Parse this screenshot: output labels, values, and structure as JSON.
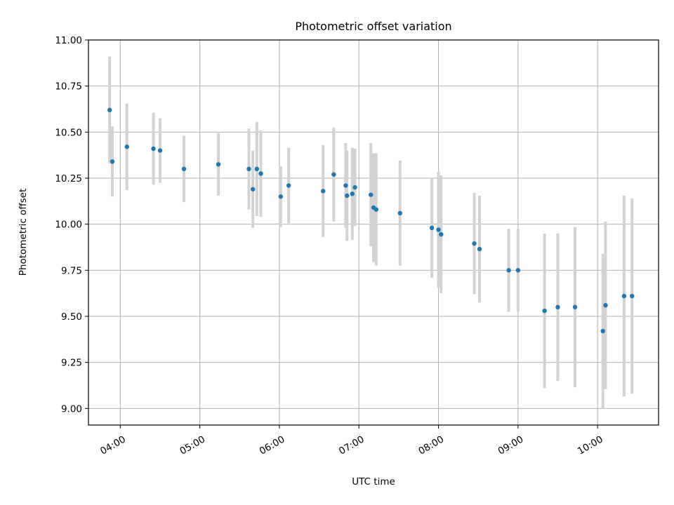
{
  "chart_data": {
    "type": "scatter",
    "title": "Photometric offset variation",
    "xlabel": "UTC time",
    "ylabel": "Photometric offset",
    "xlim": [
      "03:36",
      "10:46"
    ],
    "ylim": [
      8.91,
      11.0
    ],
    "x_ticks": [
      "04:00",
      "05:00",
      "06:00",
      "07:00",
      "08:00",
      "09:00",
      "10:00"
    ],
    "y_ticks": [
      "9.00",
      "9.25",
      "9.50",
      "9.75",
      "10.00",
      "10.25",
      "10.50",
      "10.75",
      "11.00"
    ],
    "grid": true,
    "point_color": "#1f77b4",
    "errorbar_color": "#d3d3d3",
    "points": [
      {
        "x": "03:52",
        "y": 10.62,
        "yerr": 0.29
      },
      {
        "x": "03:54",
        "y": 10.34,
        "yerr": 0.19
      },
      {
        "x": "04:05",
        "y": 10.42,
        "yerr": 0.235
      },
      {
        "x": "04:25",
        "y": 10.41,
        "yerr": 0.195
      },
      {
        "x": "04:30",
        "y": 10.4,
        "yerr": 0.175
      },
      {
        "x": "04:48",
        "y": 10.3,
        "yerr": 0.18
      },
      {
        "x": "05:14",
        "y": 10.325,
        "yerr": 0.17
      },
      {
        "x": "05:37",
        "y": 10.3,
        "yerr": 0.22
      },
      {
        "x": "05:40",
        "y": 10.19,
        "yerr": 0.21
      },
      {
        "x": "05:43",
        "y": 10.3,
        "yerr": 0.255
      },
      {
        "x": "05:46",
        "y": 10.275,
        "yerr": 0.235
      },
      {
        "x": "06:01",
        "y": 10.15,
        "yerr": 0.165
      },
      {
        "x": "06:07",
        "y": 10.21,
        "yerr": 0.205
      },
      {
        "x": "06:33",
        "y": 10.18,
        "yerr": 0.25
      },
      {
        "x": "06:41",
        "y": 10.27,
        "yerr": 0.255
      },
      {
        "x": "06:50",
        "y": 10.21,
        "yerr": 0.23
      },
      {
        "x": "06:51",
        "y": 10.155,
        "yerr": 0.245
      },
      {
        "x": "06:55",
        "y": 10.165,
        "yerr": 0.25
      },
      {
        "x": "06:57",
        "y": 10.2,
        "yerr": 0.21
      },
      {
        "x": "07:09",
        "y": 10.16,
        "yerr": 0.28
      },
      {
        "x": "07:11",
        "y": 10.09,
        "yerr": 0.295
      },
      {
        "x": "07:13",
        "y": 10.08,
        "yerr": 0.305
      },
      {
        "x": "07:31",
        "y": 10.06,
        "yerr": 0.285
      },
      {
        "x": "07:55",
        "y": 9.98,
        "yerr": 0.27
      },
      {
        "x": "08:00",
        "y": 9.97,
        "yerr": 0.315
      },
      {
        "x": "08:02",
        "y": 9.945,
        "yerr": 0.32
      },
      {
        "x": "08:27",
        "y": 9.895,
        "yerr": 0.275
      },
      {
        "x": "08:31",
        "y": 9.865,
        "yerr": 0.29
      },
      {
        "x": "08:53",
        "y": 9.75,
        "yerr": 0.225
      },
      {
        "x": "09:00",
        "y": 9.75,
        "yerr": 0.225
      },
      {
        "x": "09:20",
        "y": 9.53,
        "yerr": 0.42
      },
      {
        "x": "09:30",
        "y": 9.55,
        "yerr": 0.4
      },
      {
        "x": "09:43",
        "y": 9.55,
        "yerr": 0.435
      },
      {
        "x": "10:04",
        "y": 9.42,
        "yerr": 0.42
      },
      {
        "x": "10:06",
        "y": 9.56,
        "yerr": 0.455
      },
      {
        "x": "10:20",
        "y": 9.61,
        "yerr": 0.545
      },
      {
        "x": "10:26",
        "y": 9.61,
        "yerr": 0.53
      }
    ]
  }
}
